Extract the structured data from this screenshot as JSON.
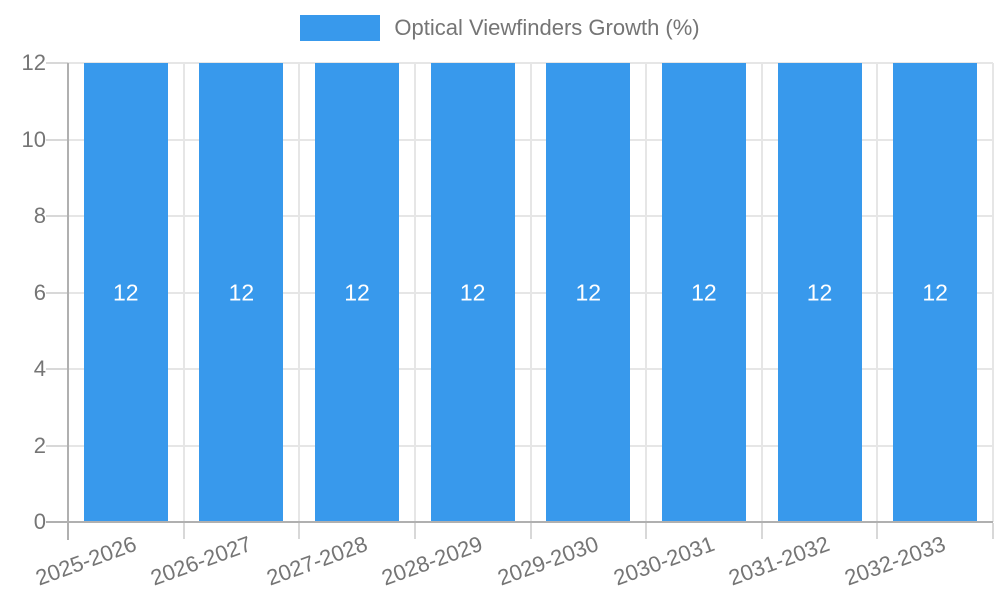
{
  "chart_data": {
    "type": "bar",
    "title": "",
    "xlabel": "",
    "ylabel": "",
    "categories": [
      "2025-2026",
      "2026-2027",
      "2027-2028",
      "2028-2029",
      "2029-2030",
      "2030-2031",
      "2031-2032",
      "2032-2033"
    ],
    "series": [
      {
        "name": "Optical Viewfinders Growth (%)",
        "values": [
          12,
          12,
          12,
          12,
          12,
          12,
          12,
          12
        ]
      }
    ],
    "ylim": [
      0,
      12
    ],
    "yticks": [
      0,
      2,
      4,
      6,
      8,
      10,
      12
    ],
    "grid": true,
    "legend_position": "top",
    "colors": {
      "bar": "#3899ec",
      "bar_value_label": "#ffffff",
      "axis_text": "#757575",
      "legend_text": "#757575",
      "axis_line": "#b0b0b0",
      "gridline": "#e6e6e6",
      "tick_mark": "#d8d8d8"
    }
  }
}
